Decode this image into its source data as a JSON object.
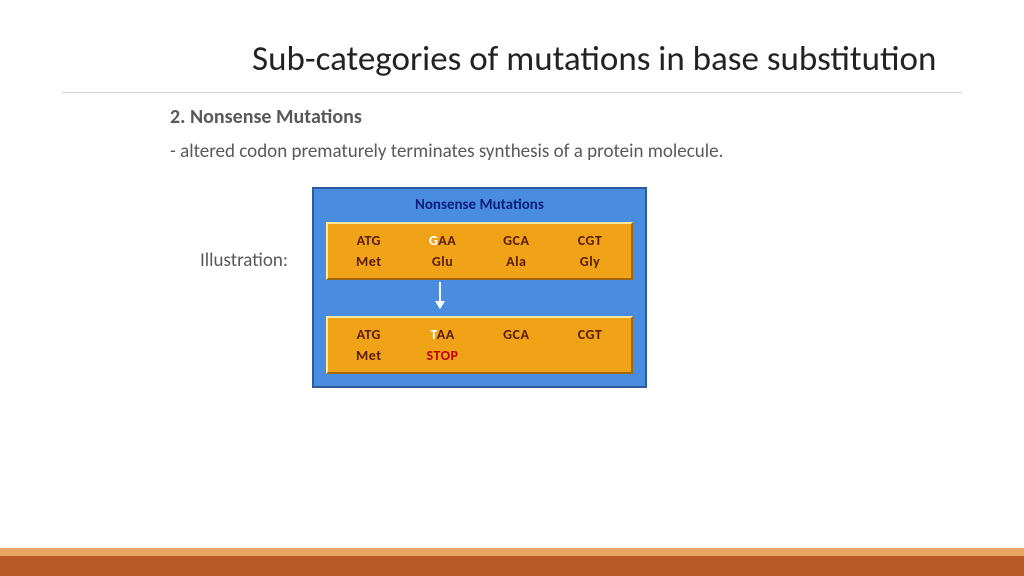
{
  "title": "Sub-categories of mutations in base substitution",
  "subheading": "2. Nonsense Mutations",
  "body_text": "- altered codon prematurely terminates synthesis of a protein molecule.",
  "illustration_label": "Illustration:",
  "diagram": {
    "title": "Nonsense Mutations",
    "panel1": {
      "codons": [
        {
          "pre": "",
          "hl": "",
          "rest": "ATG"
        },
        {
          "pre": "",
          "hl": "G",
          "rest": "AA"
        },
        {
          "pre": "",
          "hl": "",
          "rest": "GCA"
        },
        {
          "pre": "",
          "hl": "",
          "rest": "CGT"
        }
      ],
      "aminos": [
        "Met",
        "Glu",
        "Ala",
        "Gly"
      ]
    },
    "panel2": {
      "codons": [
        {
          "pre": "",
          "hl": "",
          "rest": "ATG"
        },
        {
          "pre": "",
          "hl": "T",
          "rest": "AA"
        },
        {
          "pre": "",
          "hl": "",
          "rest": "GCA"
        },
        {
          "pre": "",
          "hl": "",
          "rest": "CGT"
        }
      ],
      "aminos": [
        "Met",
        "STOP",
        "",
        ""
      ]
    },
    "colors": {
      "panel_bg": "#4a8de0",
      "panel_border": "#2c5c9a",
      "box_bg": "#f0a317",
      "title_color": "#0b1e7a",
      "text_color": "#5a1a00",
      "highlight_color": "#ffffff",
      "stop_color": "#c00010",
      "arrow_color": "#ffffff"
    }
  },
  "footer": {
    "top_color": "#e8a765",
    "bottom_color": "#b85a28"
  }
}
